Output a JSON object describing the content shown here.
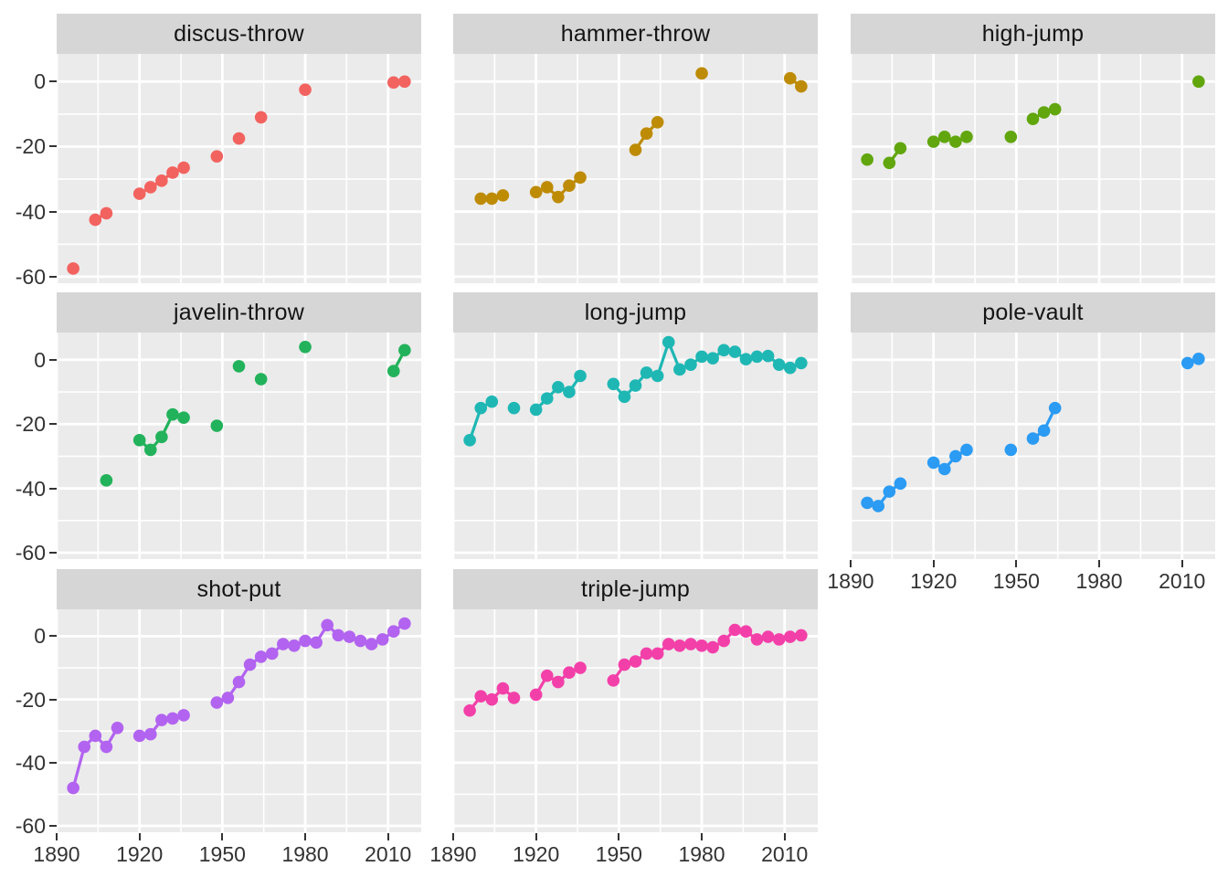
{
  "chart_data": {
    "type": "scatter",
    "description_visible_text_only": "faceted scatter/line panels",
    "x_domain": [
      1890,
      2022
    ],
    "y_domain": [
      -62,
      8.5
    ],
    "x_major_ticks": [
      1890,
      1920,
      1950,
      1980,
      2010
    ],
    "x_minor_ticks": [
      1905,
      1935,
      1965,
      1995
    ],
    "y_major_ticks": [
      0,
      -20,
      -40,
      -60
    ],
    "y_minor_ticks": [
      -10,
      -30,
      -50
    ],
    "grid": true,
    "legend": false,
    "line_rule_max_year_gap": 4,
    "theme": {
      "background": "#FFFFFF",
      "panel_bg": "#EBEBEB",
      "strip_bg": "#D6D6D6",
      "grid_color": "#FFFFFF",
      "axis_text_color": "#333333",
      "tick_color": "#333333"
    },
    "facets": [
      {
        "title": "discus-throw",
        "color": "#F2635F",
        "points": [
          [
            1896,
            -57.5
          ],
          [
            1904,
            -42.5
          ],
          [
            1908,
            -40.5
          ],
          [
            1920,
            -34.5
          ],
          [
            1924,
            -32.5
          ],
          [
            1928,
            -30.5
          ],
          [
            1932,
            -28
          ],
          [
            1936,
            -26.5
          ],
          [
            1948,
            -23
          ],
          [
            1956,
            -17.5
          ],
          [
            1964,
            -11
          ],
          [
            1980,
            -2.5
          ],
          [
            2012,
            -0.3
          ],
          [
            2016,
            0
          ]
        ]
      },
      {
        "title": "hammer-throw",
        "color": "#BE8B05",
        "points": [
          [
            1900,
            -36
          ],
          [
            1904,
            -36
          ],
          [
            1908,
            -35
          ],
          [
            1920,
            -34
          ],
          [
            1924,
            -32.5
          ],
          [
            1928,
            -35.5
          ],
          [
            1932,
            -32
          ],
          [
            1936,
            -29.5
          ],
          [
            1956,
            -21
          ],
          [
            1960,
            -16
          ],
          [
            1964,
            -12.5
          ],
          [
            1980,
            2.5
          ],
          [
            2012,
            1
          ],
          [
            2016,
            -1.5
          ]
        ]
      },
      {
        "title": "high-jump",
        "color": "#61A60D",
        "points": [
          [
            1896,
            -24
          ],
          [
            1904,
            -25
          ],
          [
            1908,
            -20.5
          ],
          [
            1920,
            -18.5
          ],
          [
            1924,
            -17
          ],
          [
            1928,
            -18.5
          ],
          [
            1932,
            -17
          ],
          [
            1948,
            -17
          ],
          [
            1956,
            -11.5
          ],
          [
            1960,
            -9.5
          ],
          [
            1964,
            -8.5
          ],
          [
            2016,
            0
          ]
        ]
      },
      {
        "title": "javelin-throw",
        "color": "#22B25B",
        "points": [
          [
            1908,
            -37.5
          ],
          [
            1920,
            -25
          ],
          [
            1924,
            -28
          ],
          [
            1928,
            -24
          ],
          [
            1932,
            -17
          ],
          [
            1936,
            -18
          ],
          [
            1948,
            -20.5
          ],
          [
            1956,
            -2
          ],
          [
            1964,
            -6
          ],
          [
            1980,
            4
          ],
          [
            2012,
            -3.5
          ],
          [
            2016,
            3
          ]
        ]
      },
      {
        "title": "long-jump",
        "color": "#1FB7B4",
        "points": [
          [
            1896,
            -25
          ],
          [
            1900,
            -15
          ],
          [
            1904,
            -13
          ],
          [
            1912,
            -15
          ],
          [
            1920,
            -15.5
          ],
          [
            1924,
            -12
          ],
          [
            1928,
            -8.5
          ],
          [
            1932,
            -10
          ],
          [
            1936,
            -5
          ],
          [
            1948,
            -7.5
          ],
          [
            1952,
            -11.5
          ],
          [
            1956,
            -8
          ],
          [
            1960,
            -4
          ],
          [
            1964,
            -5
          ],
          [
            1968,
            5.5
          ],
          [
            1972,
            -3
          ],
          [
            1976,
            -1.5
          ],
          [
            1980,
            1
          ],
          [
            1984,
            0.5
          ],
          [
            1988,
            3
          ],
          [
            1992,
            2.5
          ],
          [
            1996,
            0.2
          ],
          [
            2000,
            1
          ],
          [
            2004,
            1.2
          ],
          [
            2008,
            -1.5
          ],
          [
            2012,
            -2.5
          ],
          [
            2016,
            -1
          ]
        ]
      },
      {
        "title": "pole-vault",
        "color": "#2B9BF4",
        "points": [
          [
            1896,
            -44.5
          ],
          [
            1900,
            -45.5
          ],
          [
            1904,
            -41
          ],
          [
            1908,
            -38.5
          ],
          [
            1920,
            -32
          ],
          [
            1924,
            -34
          ],
          [
            1928,
            -30
          ],
          [
            1932,
            -28
          ],
          [
            1948,
            -28
          ],
          [
            1956,
            -24.5
          ],
          [
            1960,
            -22
          ],
          [
            1964,
            -15
          ],
          [
            2012,
            -1
          ],
          [
            2016,
            0.3
          ]
        ]
      },
      {
        "title": "shot-put",
        "color": "#B263F0",
        "points": [
          [
            1896,
            -48
          ],
          [
            1900,
            -35
          ],
          [
            1904,
            -31.5
          ],
          [
            1908,
            -35
          ],
          [
            1912,
            -29
          ],
          [
            1920,
            -31.5
          ],
          [
            1924,
            -31
          ],
          [
            1928,
            -26.5
          ],
          [
            1932,
            -26
          ],
          [
            1936,
            -25
          ],
          [
            1948,
            -21
          ],
          [
            1952,
            -19.5
          ],
          [
            1956,
            -14.5
          ],
          [
            1960,
            -9
          ],
          [
            1964,
            -6.5
          ],
          [
            1968,
            -5.5
          ],
          [
            1972,
            -2.5
          ],
          [
            1976,
            -3
          ],
          [
            1980,
            -1.5
          ],
          [
            1984,
            -2
          ],
          [
            1988,
            3.5
          ],
          [
            1992,
            0.3
          ],
          [
            1996,
            -0.2
          ],
          [
            2000,
            -1.5
          ],
          [
            2004,
            -2.5
          ],
          [
            2008,
            -1
          ],
          [
            2012,
            1.5
          ],
          [
            2016,
            4
          ]
        ]
      },
      {
        "title": "triple-jump",
        "color": "#F340A9",
        "points": [
          [
            1896,
            -23.5
          ],
          [
            1900,
            -19
          ],
          [
            1904,
            -20
          ],
          [
            1908,
            -16.5
          ],
          [
            1912,
            -19.5
          ],
          [
            1920,
            -18.5
          ],
          [
            1924,
            -12.5
          ],
          [
            1928,
            -14.5
          ],
          [
            1932,
            -11.5
          ],
          [
            1936,
            -10
          ],
          [
            1948,
            -14
          ],
          [
            1952,
            -9
          ],
          [
            1956,
            -8
          ],
          [
            1960,
            -5.5
          ],
          [
            1964,
            -5.5
          ],
          [
            1968,
            -2.5
          ],
          [
            1972,
            -3
          ],
          [
            1976,
            -2.5
          ],
          [
            1980,
            -3
          ],
          [
            1984,
            -3.5
          ],
          [
            1988,
            -1.5
          ],
          [
            1992,
            2
          ],
          [
            1996,
            1.5
          ],
          [
            2000,
            -1
          ],
          [
            2004,
            -0.2
          ],
          [
            2008,
            -1
          ],
          [
            2012,
            -0.2
          ],
          [
            2016,
            0.3
          ]
        ]
      }
    ]
  }
}
